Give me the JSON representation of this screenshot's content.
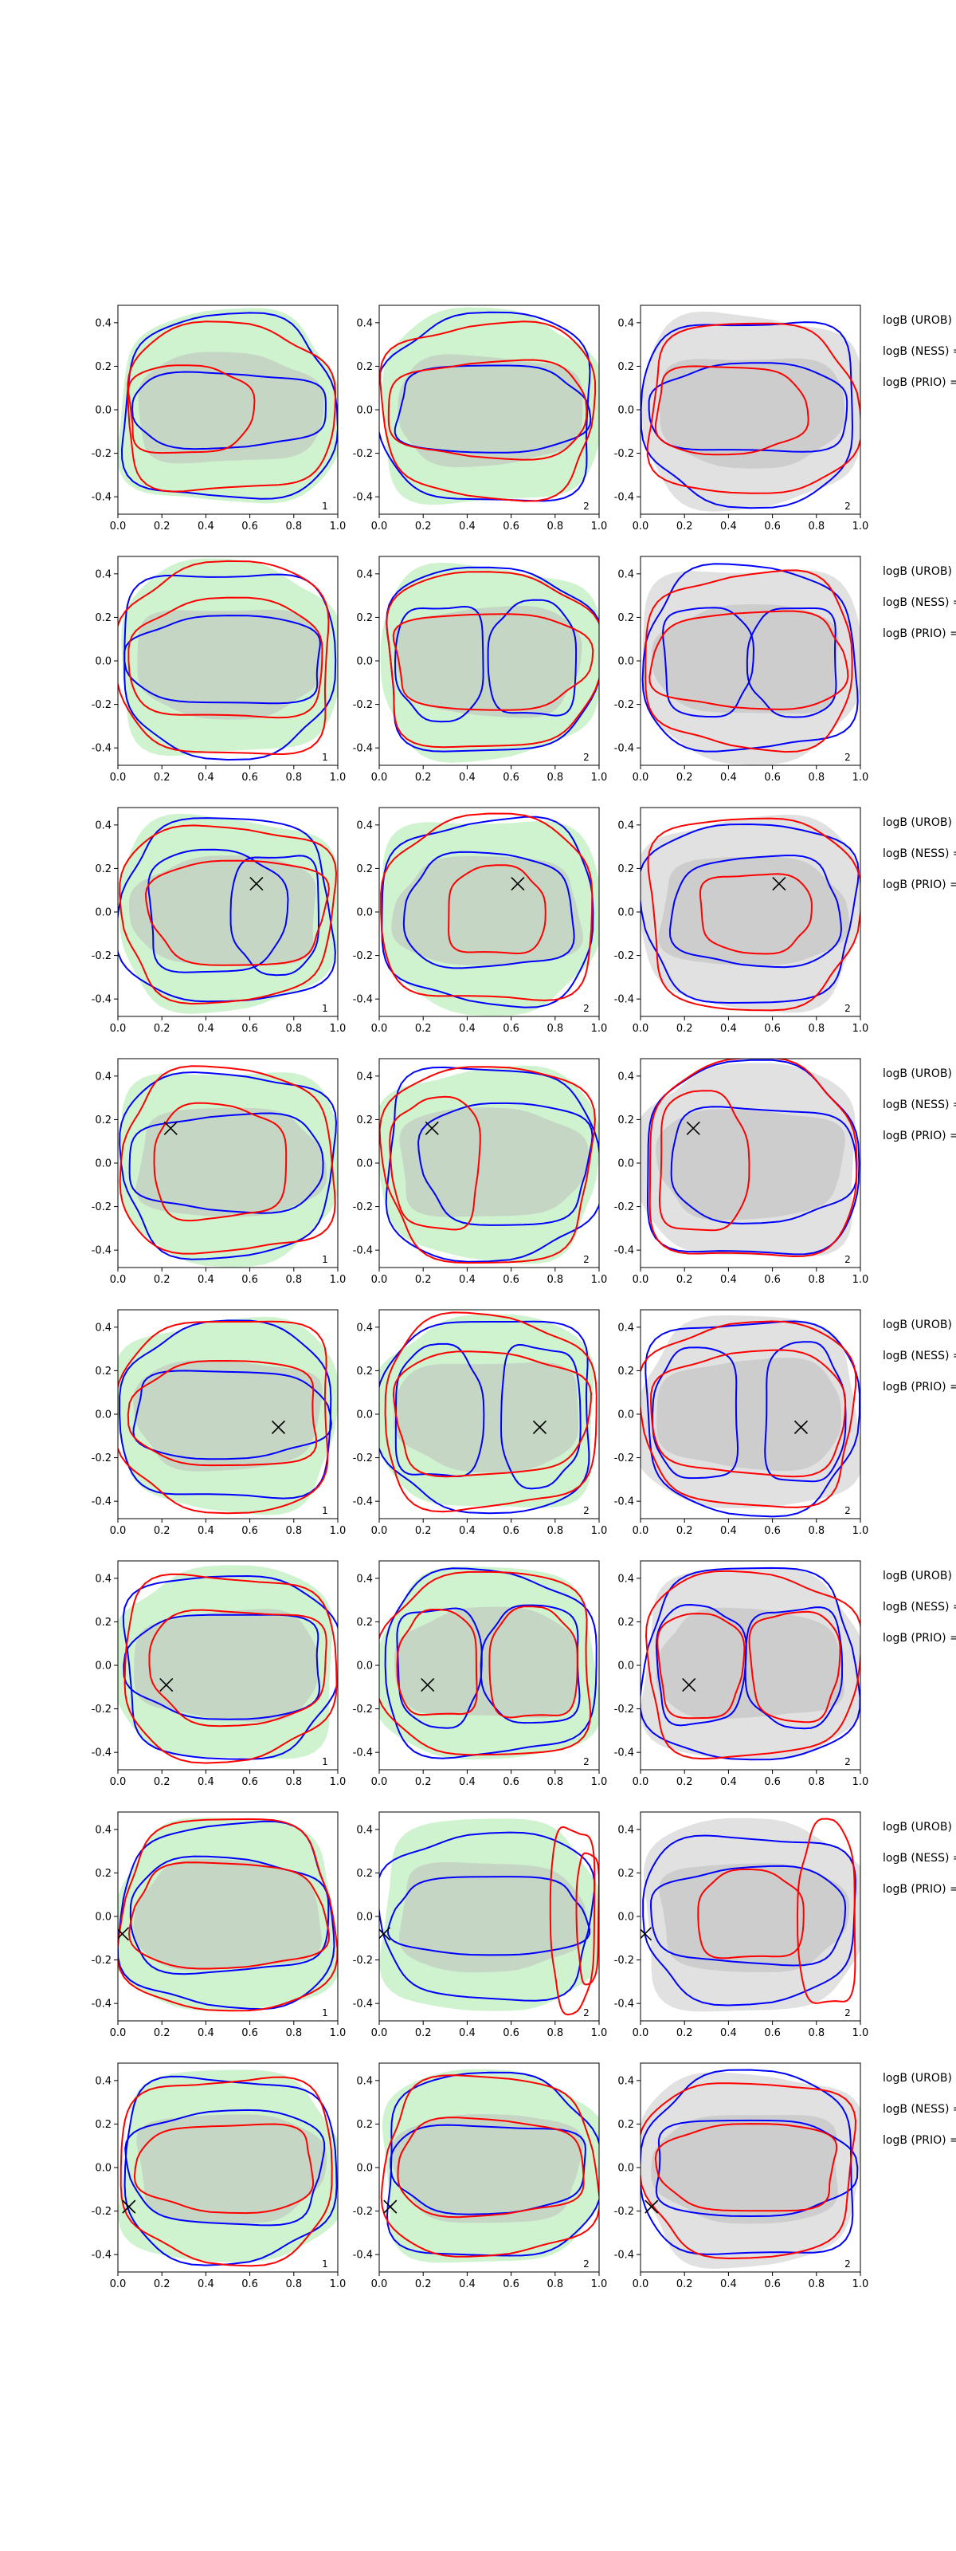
{
  "figure": {
    "rows": 8,
    "cols": 3,
    "annotations": [
      "logB (UROB) =",
      "logB (NESS) =",
      "logB (PRIO) ="
    ],
    "panel_tags": [
      "1",
      "2",
      "2"
    ]
  },
  "chart_data": {
    "type": "contour",
    "description_of_layout": "8 rows x 3 columns of 2D density contour panels",
    "xlim": [
      0.0,
      1.0
    ],
    "ylim": [
      -0.48,
      0.48
    ],
    "x_ticks": [
      "0.0",
      "0.2",
      "0.4",
      "0.6",
      "0.8",
      "1.0"
    ],
    "y_ticks": [
      "-0.4",
      "-0.2",
      "0.0",
      "0.2",
      "0.4"
    ],
    "grid": false,
    "colors": {
      "red": "#ff0000",
      "blue": "#0000ff",
      "green_fill": "#b6edb6",
      "gray_fill": "#c8c8c8",
      "marker": "#000000"
    },
    "columns": [
      {
        "col": 1,
        "background": "green",
        "corner_tag": "1"
      },
      {
        "col": 2,
        "background": "green",
        "corner_tag": "2"
      },
      {
        "col": 3,
        "background": "gray",
        "corner_tag": "2"
      }
    ],
    "markers": [
      {
        "row": 1,
        "x": null,
        "y": null
      },
      {
        "row": 2,
        "x": null,
        "y": null
      },
      {
        "row": 3,
        "x": 0.63,
        "y": 0.13
      },
      {
        "row": 4,
        "x": 0.24,
        "y": 0.16
      },
      {
        "row": 5,
        "x": 0.73,
        "y": -0.06
      },
      {
        "row": 6,
        "x": 0.22,
        "y": -0.09
      },
      {
        "row": 7,
        "x": 0.02,
        "y": -0.08
      },
      {
        "row": 8,
        "x": 0.05,
        "y": -0.18
      }
    ],
    "panels": [
      {
        "row": 1,
        "col": 1,
        "blue": [
          {
            "cx": 0.5,
            "cy": 0.0,
            "rx": 0.48,
            "ry": 0.42
          },
          {
            "cx": 0.5,
            "cy": 0.0,
            "rx": 0.44,
            "ry": 0.17
          }
        ],
        "red": [
          {
            "cx": 0.5,
            "cy": 0.0,
            "rx": 0.47,
            "ry": 0.38
          },
          {
            "cx": 0.32,
            "cy": 0.0,
            "rx": 0.28,
            "ry": 0.2
          }
        ]
      },
      {
        "row": 1,
        "col": 2,
        "blue": [
          {
            "cx": 0.5,
            "cy": 0.0,
            "rx": 0.48,
            "ry": 0.43
          },
          {
            "cx": 0.5,
            "cy": 0.0,
            "rx": 0.43,
            "ry": 0.2
          }
        ],
        "red": [
          {
            "cx": 0.5,
            "cy": 0.0,
            "rx": 0.48,
            "ry": 0.4
          },
          {
            "cx": 0.5,
            "cy": 0.0,
            "rx": 0.45,
            "ry": 0.22
          }
        ]
      },
      {
        "row": 1,
        "col": 3,
        "blue": [
          {
            "cx": 0.5,
            "cy": 0.0,
            "rx": 0.48,
            "ry": 0.42
          },
          {
            "cx": 0.5,
            "cy": 0.0,
            "rx": 0.45,
            "ry": 0.2
          }
        ],
        "red": [
          {
            "cx": 0.5,
            "cy": 0.0,
            "rx": 0.47,
            "ry": 0.39
          },
          {
            "cx": 0.4,
            "cy": 0.0,
            "rx": 0.34,
            "ry": 0.2
          }
        ]
      },
      {
        "row": 2,
        "col": 1,
        "blue": [
          {
            "cx": 0.5,
            "cy": 0.0,
            "rx": 0.48,
            "ry": 0.42
          },
          {
            "cx": 0.5,
            "cy": 0.0,
            "rx": 0.44,
            "ry": 0.2
          }
        ],
        "red": [
          {
            "cx": 0.5,
            "cy": 0.0,
            "rx": 0.48,
            "ry": 0.44
          },
          {
            "cx": 0.5,
            "cy": 0.0,
            "rx": 0.44,
            "ry": 0.27
          }
        ]
      },
      {
        "row": 2,
        "col": 2,
        "blue": [
          {
            "cx": 0.5,
            "cy": 0.0,
            "rx": 0.48,
            "ry": 0.42
          },
          {
            "cx": 0.28,
            "cy": 0.0,
            "rx": 0.2,
            "ry": 0.26
          },
          {
            "cx": 0.7,
            "cy": 0.0,
            "rx": 0.2,
            "ry": 0.26
          }
        ],
        "red": [
          {
            "cx": 0.5,
            "cy": 0.0,
            "rx": 0.48,
            "ry": 0.4
          },
          {
            "cx": 0.5,
            "cy": 0.0,
            "rx": 0.44,
            "ry": 0.22
          }
        ]
      },
      {
        "row": 2,
        "col": 3,
        "blue": [
          {
            "cx": 0.5,
            "cy": 0.0,
            "rx": 0.48,
            "ry": 0.42
          },
          {
            "cx": 0.3,
            "cy": 0.0,
            "rx": 0.2,
            "ry": 0.25
          },
          {
            "cx": 0.7,
            "cy": 0.0,
            "rx": 0.2,
            "ry": 0.25
          }
        ],
        "red": [
          {
            "cx": 0.5,
            "cy": 0.0,
            "rx": 0.47,
            "ry": 0.4
          },
          {
            "cx": 0.5,
            "cy": 0.0,
            "rx": 0.44,
            "ry": 0.22
          }
        ]
      },
      {
        "row": 3,
        "col": 1,
        "blue": [
          {
            "cx": 0.5,
            "cy": 0.0,
            "rx": 0.48,
            "ry": 0.42
          },
          {
            "cx": 0.44,
            "cy": 0.0,
            "rx": 0.31,
            "ry": 0.28
          },
          {
            "cx": 0.72,
            "cy": 0.0,
            "rx": 0.2,
            "ry": 0.27
          }
        ],
        "red": [
          {
            "cx": 0.5,
            "cy": 0.0,
            "rx": 0.48,
            "ry": 0.4
          },
          {
            "cx": 0.55,
            "cy": 0.0,
            "rx": 0.4,
            "ry": 0.24
          }
        ]
      },
      {
        "row": 3,
        "col": 2,
        "blue": [
          {
            "cx": 0.5,
            "cy": 0.0,
            "rx": 0.48,
            "ry": 0.42
          },
          {
            "cx": 0.5,
            "cy": 0.0,
            "rx": 0.38,
            "ry": 0.26
          }
        ],
        "red": [
          {
            "cx": 0.5,
            "cy": 0.0,
            "rx": 0.48,
            "ry": 0.42
          },
          {
            "cx": 0.53,
            "cy": 0.0,
            "rx": 0.22,
            "ry": 0.2
          }
        ]
      },
      {
        "row": 3,
        "col": 3,
        "blue": [
          {
            "cx": 0.5,
            "cy": 0.0,
            "rx": 0.48,
            "ry": 0.41
          },
          {
            "cx": 0.53,
            "cy": 0.0,
            "rx": 0.38,
            "ry": 0.25
          }
        ],
        "red": [
          {
            "cx": 0.5,
            "cy": 0.0,
            "rx": 0.47,
            "ry": 0.44
          },
          {
            "cx": 0.52,
            "cy": 0.0,
            "rx": 0.25,
            "ry": 0.18
          }
        ]
      },
      {
        "row": 4,
        "col": 1,
        "blue": [
          {
            "cx": 0.5,
            "cy": 0.0,
            "rx": 0.48,
            "ry": 0.42
          },
          {
            "cx": 0.5,
            "cy": 0.0,
            "rx": 0.44,
            "ry": 0.22
          }
        ],
        "red": [
          {
            "cx": 0.5,
            "cy": 0.0,
            "rx": 0.48,
            "ry": 0.42
          },
          {
            "cx": 0.46,
            "cy": 0.0,
            "rx": 0.3,
            "ry": 0.26
          }
        ]
      },
      {
        "row": 4,
        "col": 2,
        "blue": [
          {
            "cx": 0.5,
            "cy": 0.0,
            "rx": 0.48,
            "ry": 0.44
          },
          {
            "cx": 0.58,
            "cy": 0.0,
            "rx": 0.38,
            "ry": 0.28
          }
        ],
        "red": [
          {
            "cx": 0.5,
            "cy": 0.0,
            "rx": 0.47,
            "ry": 0.45
          },
          {
            "cx": 0.26,
            "cy": 0.0,
            "rx": 0.2,
            "ry": 0.3
          }
        ]
      },
      {
        "row": 4,
        "col": 3,
        "blue": [
          {
            "cx": 0.5,
            "cy": 0.0,
            "rx": 0.48,
            "ry": 0.44
          },
          {
            "cx": 0.55,
            "cy": 0.0,
            "rx": 0.42,
            "ry": 0.26
          }
        ],
        "red": [
          {
            "cx": 0.5,
            "cy": 0.0,
            "rx": 0.47,
            "ry": 0.45
          },
          {
            "cx": 0.28,
            "cy": 0.0,
            "rx": 0.2,
            "ry": 0.32
          }
        ]
      },
      {
        "row": 5,
        "col": 1,
        "blue": [
          {
            "cx": 0.5,
            "cy": 0.0,
            "rx": 0.48,
            "ry": 0.4
          },
          {
            "cx": 0.5,
            "cy": 0.0,
            "rx": 0.44,
            "ry": 0.2
          }
        ],
        "red": [
          {
            "cx": 0.5,
            "cy": 0.0,
            "rx": 0.48,
            "ry": 0.44
          },
          {
            "cx": 0.5,
            "cy": 0.0,
            "rx": 0.42,
            "ry": 0.24
          }
        ]
      },
      {
        "row": 5,
        "col": 2,
        "blue": [
          {
            "cx": 0.5,
            "cy": 0.0,
            "rx": 0.48,
            "ry": 0.44
          },
          {
            "cx": 0.27,
            "cy": 0.0,
            "rx": 0.2,
            "ry": 0.3
          },
          {
            "cx": 0.73,
            "cy": 0.0,
            "rx": 0.18,
            "ry": 0.32
          }
        ],
        "red": [
          {
            "cx": 0.5,
            "cy": 0.0,
            "rx": 0.48,
            "ry": 0.44
          },
          {
            "cx": 0.5,
            "cy": 0.0,
            "rx": 0.44,
            "ry": 0.28
          }
        ]
      },
      {
        "row": 5,
        "col": 3,
        "blue": [
          {
            "cx": 0.5,
            "cy": 0.0,
            "rx": 0.48,
            "ry": 0.44
          },
          {
            "cx": 0.26,
            "cy": 0.0,
            "rx": 0.19,
            "ry": 0.3
          },
          {
            "cx": 0.74,
            "cy": 0.0,
            "rx": 0.18,
            "ry": 0.32
          }
        ],
        "red": [
          {
            "cx": 0.5,
            "cy": 0.0,
            "rx": 0.48,
            "ry": 0.42
          },
          {
            "cx": 0.5,
            "cy": 0.0,
            "rx": 0.44,
            "ry": 0.28
          }
        ]
      },
      {
        "row": 6,
        "col": 1,
        "blue": [
          {
            "cx": 0.5,
            "cy": 0.0,
            "rx": 0.48,
            "ry": 0.42
          },
          {
            "cx": 0.5,
            "cy": 0.0,
            "rx": 0.44,
            "ry": 0.24
          }
        ],
        "red": [
          {
            "cx": 0.5,
            "cy": 0.0,
            "rx": 0.48,
            "ry": 0.42
          },
          {
            "cx": 0.55,
            "cy": 0.0,
            "rx": 0.4,
            "ry": 0.26
          }
        ]
      },
      {
        "row": 6,
        "col": 2,
        "blue": [
          {
            "cx": 0.5,
            "cy": 0.0,
            "rx": 0.48,
            "ry": 0.42
          },
          {
            "cx": 0.27,
            "cy": 0.0,
            "rx": 0.19,
            "ry": 0.27
          },
          {
            "cx": 0.7,
            "cy": 0.0,
            "rx": 0.22,
            "ry": 0.27
          }
        ],
        "red": [
          {
            "cx": 0.5,
            "cy": 0.0,
            "rx": 0.48,
            "ry": 0.42
          },
          {
            "cx": 0.27,
            "cy": 0.0,
            "rx": 0.18,
            "ry": 0.24
          },
          {
            "cx": 0.7,
            "cy": 0.0,
            "rx": 0.2,
            "ry": 0.25
          }
        ]
      },
      {
        "row": 6,
        "col": 3,
        "blue": [
          {
            "cx": 0.5,
            "cy": 0.0,
            "rx": 0.48,
            "ry": 0.44
          },
          {
            "cx": 0.27,
            "cy": 0.0,
            "rx": 0.2,
            "ry": 0.27
          },
          {
            "cx": 0.7,
            "cy": 0.0,
            "rx": 0.22,
            "ry": 0.27
          }
        ],
        "red": [
          {
            "cx": 0.5,
            "cy": 0.0,
            "rx": 0.48,
            "ry": 0.42
          },
          {
            "cx": 0.27,
            "cy": 0.0,
            "rx": 0.19,
            "ry": 0.24
          },
          {
            "cx": 0.7,
            "cy": 0.0,
            "rx": 0.2,
            "ry": 0.25
          }
        ]
      },
      {
        "row": 7,
        "col": 1,
        "blue": [
          {
            "cx": 0.5,
            "cy": 0.0,
            "rx": 0.48,
            "ry": 0.42
          },
          {
            "cx": 0.5,
            "cy": 0.0,
            "rx": 0.45,
            "ry": 0.26
          }
        ],
        "red": [
          {
            "cx": 0.5,
            "cy": 0.0,
            "rx": 0.48,
            "ry": 0.44
          },
          {
            "cx": 0.5,
            "cy": 0.0,
            "rx": 0.44,
            "ry": 0.24
          }
        ]
      },
      {
        "row": 7,
        "col": 2,
        "blue": [
          {
            "cx": 0.5,
            "cy": 0.0,
            "rx": 0.48,
            "ry": 0.38
          },
          {
            "cx": 0.5,
            "cy": 0.0,
            "rx": 0.44,
            "ry": 0.18
          }
        ],
        "red": [
          {
            "cx": 0.88,
            "cy": 0.0,
            "rx": 0.1,
            "ry": 0.42
          },
          {
            "cx": 0.95,
            "cy": 0.0,
            "rx": 0.05,
            "ry": 0.3
          }
        ]
      },
      {
        "row": 7,
        "col": 3,
        "blue": [
          {
            "cx": 0.5,
            "cy": 0.0,
            "rx": 0.48,
            "ry": 0.38
          },
          {
            "cx": 0.5,
            "cy": 0.0,
            "rx": 0.44,
            "ry": 0.22
          }
        ],
        "red": [
          {
            "cx": 0.85,
            "cy": 0.0,
            "rx": 0.13,
            "ry": 0.42
          },
          {
            "cx": 0.5,
            "cy": 0.0,
            "rx": 0.24,
            "ry": 0.2
          }
        ]
      },
      {
        "row": 8,
        "col": 1,
        "blue": [
          {
            "cx": 0.5,
            "cy": 0.0,
            "rx": 0.48,
            "ry": 0.42
          },
          {
            "cx": 0.5,
            "cy": 0.0,
            "rx": 0.44,
            "ry": 0.26
          }
        ],
        "red": [
          {
            "cx": 0.5,
            "cy": 0.0,
            "rx": 0.48,
            "ry": 0.42
          },
          {
            "cx": 0.5,
            "cy": 0.0,
            "rx": 0.4,
            "ry": 0.2
          }
        ]
      },
      {
        "row": 8,
        "col": 2,
        "blue": [
          {
            "cx": 0.5,
            "cy": 0.0,
            "rx": 0.48,
            "ry": 0.42
          },
          {
            "cx": 0.5,
            "cy": 0.0,
            "rx": 0.44,
            "ry": 0.2
          }
        ],
        "red": [
          {
            "cx": 0.5,
            "cy": 0.0,
            "rx": 0.48,
            "ry": 0.41
          },
          {
            "cx": 0.5,
            "cy": 0.0,
            "rx": 0.42,
            "ry": 0.22
          }
        ]
      },
      {
        "row": 8,
        "col": 3,
        "blue": [
          {
            "cx": 0.5,
            "cy": 0.0,
            "rx": 0.48,
            "ry": 0.42
          },
          {
            "cx": 0.5,
            "cy": 0.0,
            "rx": 0.45,
            "ry": 0.22
          }
        ],
        "red": [
          {
            "cx": 0.5,
            "cy": 0.0,
            "rx": 0.48,
            "ry": 0.4
          },
          {
            "cx": 0.5,
            "cy": 0.0,
            "rx": 0.4,
            "ry": 0.2
          }
        ]
      }
    ]
  }
}
